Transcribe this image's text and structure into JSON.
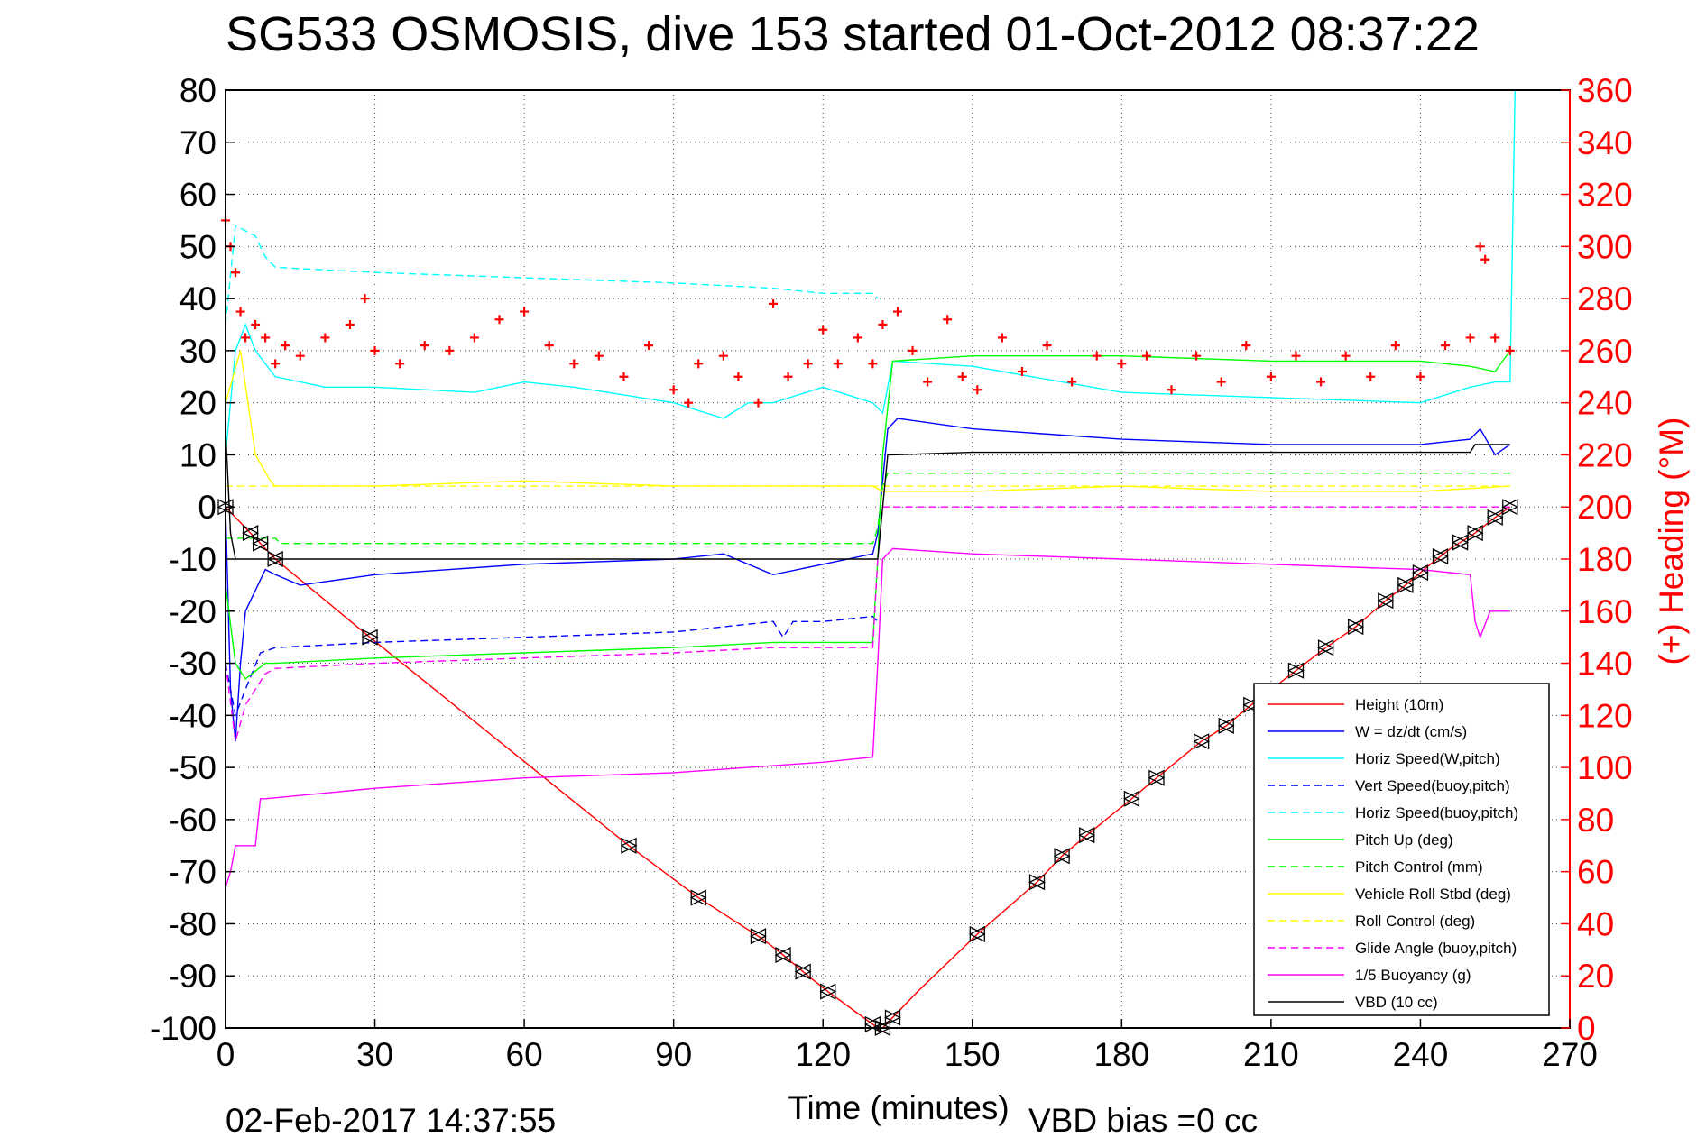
{
  "chart_data": {
    "type": "line",
    "title": "SG533 OSMOSIS, dive 153 started 01-Oct-2012 08:37:22",
    "xlabel": "Time (minutes)",
    "ylabel_right": "(+) Heading (°M)",
    "footer_left": "02-Feb-2017 14:37:55",
    "footer_right": "VBD bias =0 cc",
    "xlim": [
      0,
      270
    ],
    "ylim": [
      -100,
      80
    ],
    "ylim_right": [
      0,
      360
    ],
    "xticks": [
      "0",
      "30",
      "60",
      "90",
      "120",
      "150",
      "180",
      "210",
      "240",
      "270"
    ],
    "yticks": [
      "-100",
      "-90",
      "-80",
      "-70",
      "-60",
      "-50",
      "-40",
      "-30",
      "-20",
      "-10",
      "0",
      "10",
      "20",
      "30",
      "40",
      "50",
      "60",
      "70",
      "80"
    ],
    "yticks_right": [
      "0",
      "20",
      "40",
      "60",
      "80",
      "100",
      "120",
      "140",
      "160",
      "180",
      "200",
      "220",
      "240",
      "260",
      "280",
      "300",
      "320",
      "340",
      "360"
    ],
    "grid": true,
    "legend_position": "bottom-right",
    "legend": [
      {
        "label": "Height (10m)",
        "color": "#ff0000",
        "dash": "solid"
      },
      {
        "label": "W = dz/dt (cm/s)",
        "color": "#0000ff",
        "dash": "solid"
      },
      {
        "label": "Horiz Speed(W,pitch)",
        "color": "#00ffff",
        "dash": "solid"
      },
      {
        "label": "Vert Speed(buoy,pitch)",
        "color": "#0000ff",
        "dash": "dashed"
      },
      {
        "label": "Horiz Speed(buoy,pitch)",
        "color": "#00ffff",
        "dash": "dashed"
      },
      {
        "label": "Pitch Up (deg)",
        "color": "#00ff00",
        "dash": "solid"
      },
      {
        "label": "Pitch Control (mm)",
        "color": "#00ff00",
        "dash": "dashed"
      },
      {
        "label": "Vehicle Roll Stbd (deg)",
        "color": "#ffff00",
        "dash": "solid"
      },
      {
        "label": "Roll Control (deg)",
        "color": "#ffff00",
        "dash": "dashed"
      },
      {
        "label": "Glide Angle (buoy,pitch)",
        "color": "#ff00ff",
        "dash": "dashed"
      },
      {
        "label": "1/5 Buoyancy (g)",
        "color": "#ff00ff",
        "dash": "solid"
      },
      {
        "label": "VBD (10 cc)",
        "color": "#000000",
        "dash": "solid"
      }
    ],
    "series": [
      {
        "name": "Height (10m)",
        "color": "#ff0000",
        "dash": "solid",
        "x": [
          0,
          5,
          10,
          29,
          81,
          95,
          108,
          112,
          117,
          121,
          131,
          132,
          134,
          139,
          151,
          163,
          168,
          173,
          182,
          187,
          196,
          201,
          206,
          221,
          227,
          233,
          237,
          242,
          246,
          251,
          255,
          258
        ],
        "y": [
          0,
          -5,
          -10,
          -25,
          -65,
          -75,
          -83,
          -86,
          -90,
          -93,
          -100,
          -100,
          -98,
          -93,
          -82,
          -72,
          -67,
          -63,
          -56,
          -52,
          -45,
          -42,
          -38,
          -27,
          -23,
          -18,
          -15,
          -11,
          -8,
          -5,
          -2,
          0
        ]
      },
      {
        "name": "W = dz/dt (cm/s)",
        "color": "#0000ff",
        "dash": "solid",
        "x": [
          0,
          1,
          2,
          3,
          4,
          5,
          8,
          10,
          15,
          30,
          60,
          90,
          100,
          110,
          120,
          130,
          131,
          132,
          133,
          135,
          150,
          180,
          210,
          240,
          250,
          252,
          255,
          258
        ],
        "y": [
          0,
          -35,
          -45,
          -30,
          -20,
          -18,
          -12,
          -13,
          -15,
          -13,
          -11,
          -10,
          -9,
          -13,
          -11,
          -9,
          -5,
          5,
          15,
          17,
          15,
          13,
          12,
          12,
          13,
          15,
          10,
          12
        ]
      },
      {
        "name": "Horiz Speed(W,pitch)",
        "color": "#00ffff",
        "dash": "solid",
        "x": [
          0,
          2,
          4,
          6,
          10,
          20,
          30,
          50,
          60,
          70,
          90,
          100,
          105,
          110,
          120,
          130,
          132,
          134,
          150,
          180,
          210,
          240,
          250,
          255,
          258,
          259
        ],
        "y": [
          10,
          30,
          35,
          30,
          25,
          23,
          23,
          22,
          24,
          23,
          20,
          17,
          20,
          20,
          23,
          20,
          18,
          28,
          27,
          22,
          21,
          20,
          23,
          24,
          24,
          80
        ]
      },
      {
        "name": "Vert Speed(buoy,pitch)",
        "color": "#0000ff",
        "dash": "dashed",
        "x": [
          0,
          2,
          4,
          7,
          10,
          30,
          60,
          90,
          110,
          112,
          114,
          120,
          130,
          131
        ],
        "y": [
          -30,
          -40,
          -35,
          -28,
          -27,
          -26,
          -25,
          -24,
          -22,
          -25,
          -22,
          -22,
          -21,
          -22
        ]
      },
      {
        "name": "Horiz Speed(buoy,pitch)",
        "color": "#00ffff",
        "dash": "dashed",
        "x": [
          0,
          2,
          6,
          8,
          10,
          30,
          60,
          90,
          110,
          120,
          130,
          131
        ],
        "y": [
          35,
          54,
          52,
          48,
          46,
          45,
          44,
          43,
          42,
          41,
          41,
          40
        ]
      },
      {
        "name": "Pitch Up (deg)",
        "color": "#00ff00",
        "dash": "solid",
        "x": [
          0,
          2,
          4,
          8,
          10,
          30,
          60,
          90,
          110,
          120,
          130,
          131,
          132,
          134,
          150,
          180,
          210,
          240,
          250,
          255,
          258
        ],
        "y": [
          -15,
          -30,
          -33,
          -30,
          -30,
          -29,
          -28,
          -27,
          -26,
          -26,
          -26,
          -10,
          10,
          28,
          29,
          29,
          28,
          28,
          27,
          26,
          30
        ]
      },
      {
        "name": "Pitch Control (mm)",
        "color": "#00ff00",
        "dash": "dashed",
        "x": [
          0,
          10,
          11,
          130,
          131,
          132,
          133,
          258
        ],
        "y": [
          -6,
          -6,
          -7,
          -7,
          -4,
          4,
          6.5,
          6.5
        ]
      },
      {
        "name": "Vehicle Roll Stbd (deg)",
        "color": "#ffff00",
        "dash": "solid",
        "x": [
          0,
          3,
          6,
          9,
          10,
          30,
          60,
          90,
          110,
          130,
          132,
          150,
          180,
          210,
          240,
          258
        ],
        "y": [
          20,
          30,
          10,
          5,
          4,
          4,
          5,
          4,
          4,
          4,
          3,
          3,
          4,
          3,
          3,
          4
        ]
      },
      {
        "name": "Roll Control (deg)",
        "color": "#ffff00",
        "dash": "dashed",
        "x": [
          0,
          10,
          130,
          132,
          258
        ],
        "y": [
          4,
          4,
          4,
          4,
          4
        ]
      },
      {
        "name": "Glide Angle (buoy,pitch)",
        "color": "#ff00ff",
        "dash": "dashed",
        "x": [
          0,
          2,
          4,
          8,
          10,
          30,
          60,
          90,
          110,
          130,
          131,
          132,
          258
        ],
        "y": [
          -30,
          -45,
          -38,
          -32,
          -31,
          -30,
          -29,
          -28,
          -27,
          -27,
          -10,
          0,
          0
        ]
      },
      {
        "name": "1/5 Buoyancy (g)",
        "color": "#ff00ff",
        "dash": "solid",
        "x": [
          0,
          1,
          2,
          3,
          6,
          7,
          8,
          30,
          60,
          90,
          120,
          130,
          131,
          132,
          134,
          150,
          180,
          210,
          240,
          250,
          251,
          252,
          254,
          258
        ],
        "y": [
          -73,
          -70,
          -65,
          -65,
          -65,
          -56,
          -56,
          -54,
          -52,
          -51,
          -49,
          -48,
          -30,
          -10,
          -8,
          -9,
          -10,
          -11,
          -12,
          -13,
          -22,
          -25,
          -20,
          -20
        ]
      },
      {
        "name": "VBD (10 cc)",
        "color": "#000000",
        "dash": "solid",
        "x": [
          0,
          1,
          2,
          130,
          131,
          132,
          133,
          134,
          150,
          180,
          210,
          240,
          250,
          251,
          258
        ],
        "y": [
          15,
          -5,
          -10,
          -10,
          -10,
          0,
          10,
          10,
          10.5,
          10.5,
          10.5,
          10.5,
          10.5,
          12,
          12
        ]
      },
      {
        "name": "(+) Heading (°M)",
        "color": "#ff0000",
        "dash": "markers",
        "axis": "right",
        "x": [
          0,
          1,
          2,
          3,
          4,
          6,
          8,
          10,
          12,
          15,
          20,
          25,
          28,
          30,
          35,
          40,
          45,
          50,
          55,
          60,
          65,
          70,
          75,
          80,
          85,
          90,
          93,
          95,
          100,
          103,
          107,
          110,
          113,
          117,
          120,
          123,
          127,
          130,
          132,
          135,
          138,
          141,
          145,
          148,
          151,
          156,
          160,
          165,
          170,
          175,
          180,
          185,
          190,
          195,
          200,
          205,
          210,
          215,
          220,
          225,
          230,
          235,
          240,
          245,
          250,
          252,
          253,
          255,
          258
        ],
        "y": [
          310,
          300,
          290,
          275,
          265,
          270,
          265,
          255,
          262,
          258,
          265,
          270,
          280,
          260,
          255,
          262,
          260,
          265,
          272,
          275,
          262,
          255,
          258,
          250,
          262,
          245,
          240,
          255,
          258,
          250,
          240,
          278,
          250,
          255,
          268,
          255,
          265,
          255,
          270,
          275,
          260,
          248,
          272,
          250,
          245,
          265,
          252,
          262,
          248,
          258,
          255,
          258,
          245,
          258,
          248,
          262,
          250,
          258,
          248,
          258,
          250,
          262,
          250,
          262,
          265,
          300,
          295,
          265,
          260
        ]
      }
    ],
    "markers_x": [
      0,
      5,
      7,
      10,
      29,
      81,
      95,
      107,
      112,
      116,
      121,
      130,
      132,
      134,
      151,
      163,
      168,
      173,
      182,
      187,
      196,
      201,
      206,
      215,
      221,
      227,
      233,
      237,
      240,
      244,
      248,
      251,
      255,
      258
    ]
  }
}
